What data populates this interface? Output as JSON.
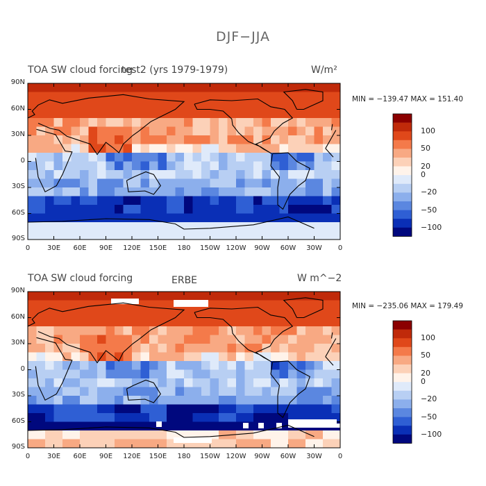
{
  "title": "DJF−JJA",
  "colors": [
    "#8b0000",
    "#c02a0a",
    "#e0481a",
    "#f47a4a",
    "#f8a983",
    "#fcd1b8",
    "#fff3ea",
    "#dfeafa",
    "#b8cff3",
    "#8cafec",
    "#5b87e0",
    "#2f5fd4",
    "#0a2fb6",
    "#00087e"
  ],
  "panels": [
    {
      "title_left": "TOA SW cloud forcing",
      "title_center": "test2 (yrs 1979-1979)",
      "units": "W/m²",
      "min_max": "MIN = −139.47  MAX = 151.40",
      "lat_labels": [
        "90N",
        "60N",
        "30N",
        "0",
        "30S",
        "60S",
        "90S"
      ],
      "lon_labels": [
        "0",
        "30E",
        "60E",
        "90E",
        "120E",
        "150E",
        "180",
        "150W",
        "120W",
        "90W",
        "60W",
        "30W",
        "0"
      ],
      "colorbar_labels": [
        "100",
        "50",
        "20",
        "0",
        "−20",
        "−50",
        "−100"
      ]
    },
    {
      "title_left": "TOA SW cloud forcing",
      "title_center": "ERBE",
      "units": "W m^−2",
      "min_max": "MIN = −235.06  MAX = 179.49",
      "lat_labels": [
        "90N",
        "60N",
        "30N",
        "0",
        "30S",
        "60S",
        "90S"
      ],
      "lon_labels": [
        "0",
        "30E",
        "60E",
        "90E",
        "120E",
        "150E",
        "180",
        "150W",
        "120W",
        "90W",
        "60W",
        "30W",
        "0"
      ],
      "colorbar_labels": [
        "100",
        "50",
        "20",
        "0",
        "−20",
        "−50",
        "−100"
      ]
    }
  ]
}
